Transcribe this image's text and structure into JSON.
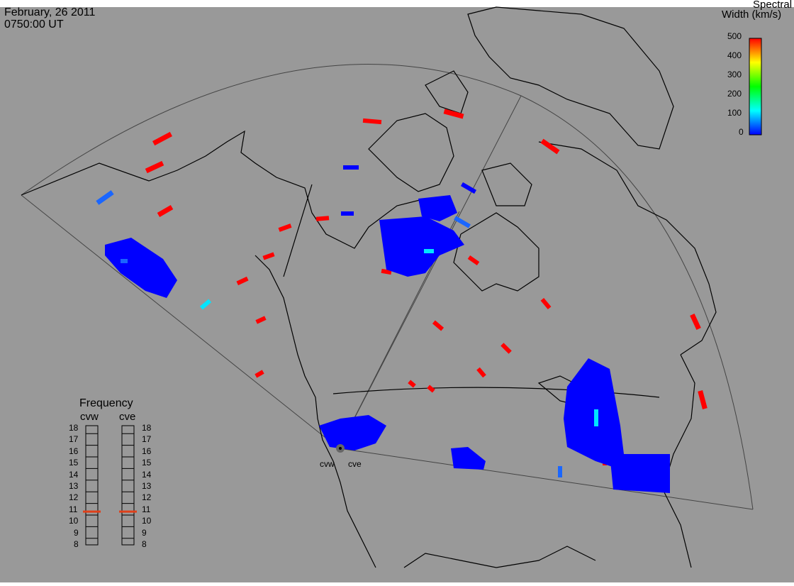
{
  "header": {
    "date": "February, 26 2011",
    "time": "0750:00 UT"
  },
  "colorbar": {
    "title_line1": "Spectral",
    "title_line2": "Width (km/s)",
    "ticks": [
      "500",
      "400",
      "300",
      "200",
      "100",
      "0"
    ],
    "range": [
      0,
      500
    ],
    "colormap": [
      "#0000ff",
      "#00ffff",
      "#00ff00",
      "#ffff00",
      "#ff0000"
    ]
  },
  "frequency_panel": {
    "title": "Frequency",
    "left_radar": "cvw",
    "right_radar": "cve",
    "scale_labels": [
      "18",
      "17",
      "16",
      "15",
      "14",
      "13",
      "12",
      "11",
      "10",
      "9",
      "8"
    ],
    "cvw_frequency_mhz": 10.8,
    "cve_frequency_mhz": 10.8,
    "marker_color": "#e0401a"
  },
  "radar_sites": {
    "cvw_label": "cvw",
    "cve_label": "cve"
  },
  "colors": {
    "background": "#999999",
    "coast": "#000000",
    "fov": "#444444"
  }
}
